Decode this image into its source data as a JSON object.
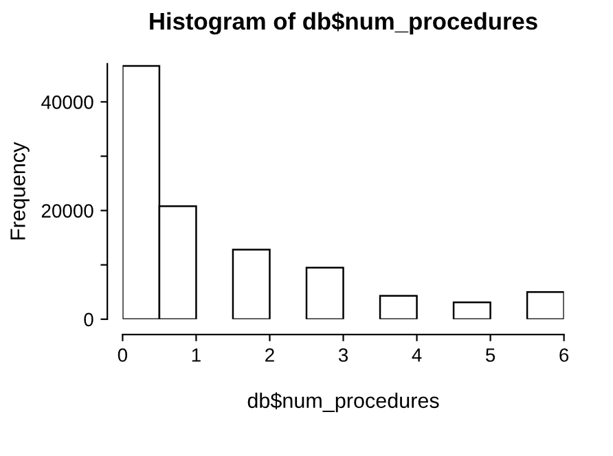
{
  "chart_data": {
    "type": "histogram",
    "title": "Histogram of db$num_procedures",
    "xlabel": "db$num_procedures",
    "ylabel": "Frequency",
    "bins": [
      0,
      0.5,
      1,
      1.5,
      2,
      2.5,
      3,
      3.5,
      4,
      4.5,
      5,
      5.5,
      6
    ],
    "values": [
      46600,
      20800,
      0,
      12800,
      0,
      9500,
      0,
      4300,
      0,
      3100,
      0,
      5000
    ],
    "color": "#ffffff",
    "xlim": [
      0,
      6
    ],
    "xticks": [
      0,
      1,
      2,
      3,
      4,
      5,
      6
    ],
    "ylim": [
      0,
      47000
    ],
    "yticks": [
      0,
      {
        "value": 10000,
        "label": null
      },
      20000,
      {
        "value": 30000,
        "label": null
      },
      40000
    ],
    "grid": false,
    "legend": false
  }
}
